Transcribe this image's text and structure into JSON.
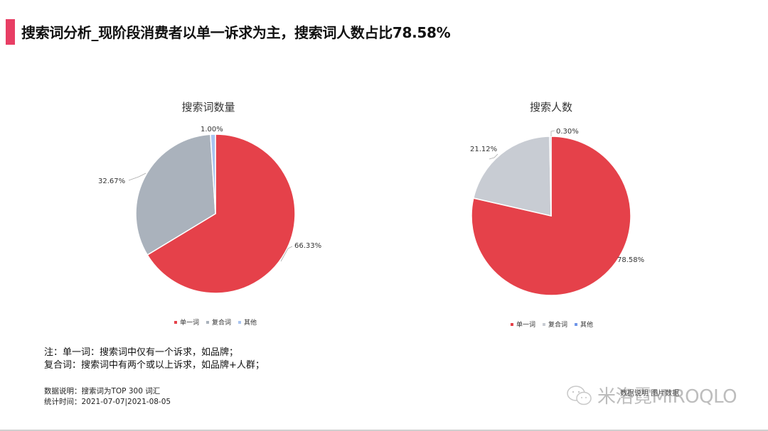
{
  "header": {
    "title": "搜索词分析_现阶段消费者以单一诉求为主，搜索词人数占比78.58%",
    "accent_color": "#e83e64"
  },
  "colors": {
    "single": "#e5414a",
    "compound_left": "#aab2bc",
    "compound_right": "#c8ccd3",
    "other": "#a9c4f0"
  },
  "legend": {
    "items": [
      {
        "label": "单一词",
        "color": "#e5414a"
      },
      {
        "label": "复合词",
        "color": "#c8ccd3"
      },
      {
        "label": "其他",
        "color": "#a9c4f0"
      }
    ]
  },
  "chart_data": [
    {
      "type": "pie",
      "title": "搜索词数量",
      "categories": [
        "单一词",
        "复合词",
        "其他"
      ],
      "values": [
        66.33,
        32.67,
        1.0
      ],
      "labels": [
        "66.33%",
        "32.67%",
        "1.00%"
      ],
      "legend_position": "bottom"
    },
    {
      "type": "pie",
      "title": "搜索人数",
      "categories": [
        "单一词",
        "复合词",
        "其他"
      ],
      "values": [
        78.58,
        21.12,
        0.3
      ],
      "labels": [
        "78.58%",
        "21.12%",
        "0.30%"
      ],
      "legend_position": "bottom"
    }
  ],
  "notes": {
    "line1": "注：单一词：搜索词中仅有一个诉求，如品牌；",
    "line2": "复合词：搜索词中有两个或以上诉求，如品牌+人群；"
  },
  "meta": {
    "data_desc": "数据说明：搜索词为TOP 300 词汇",
    "period": "统计时间：2021-07-07|2021-08-05"
  },
  "watermark": {
    "text": "米洛霓MIROQLO",
    "overlay": "数据说明 图片数据"
  }
}
